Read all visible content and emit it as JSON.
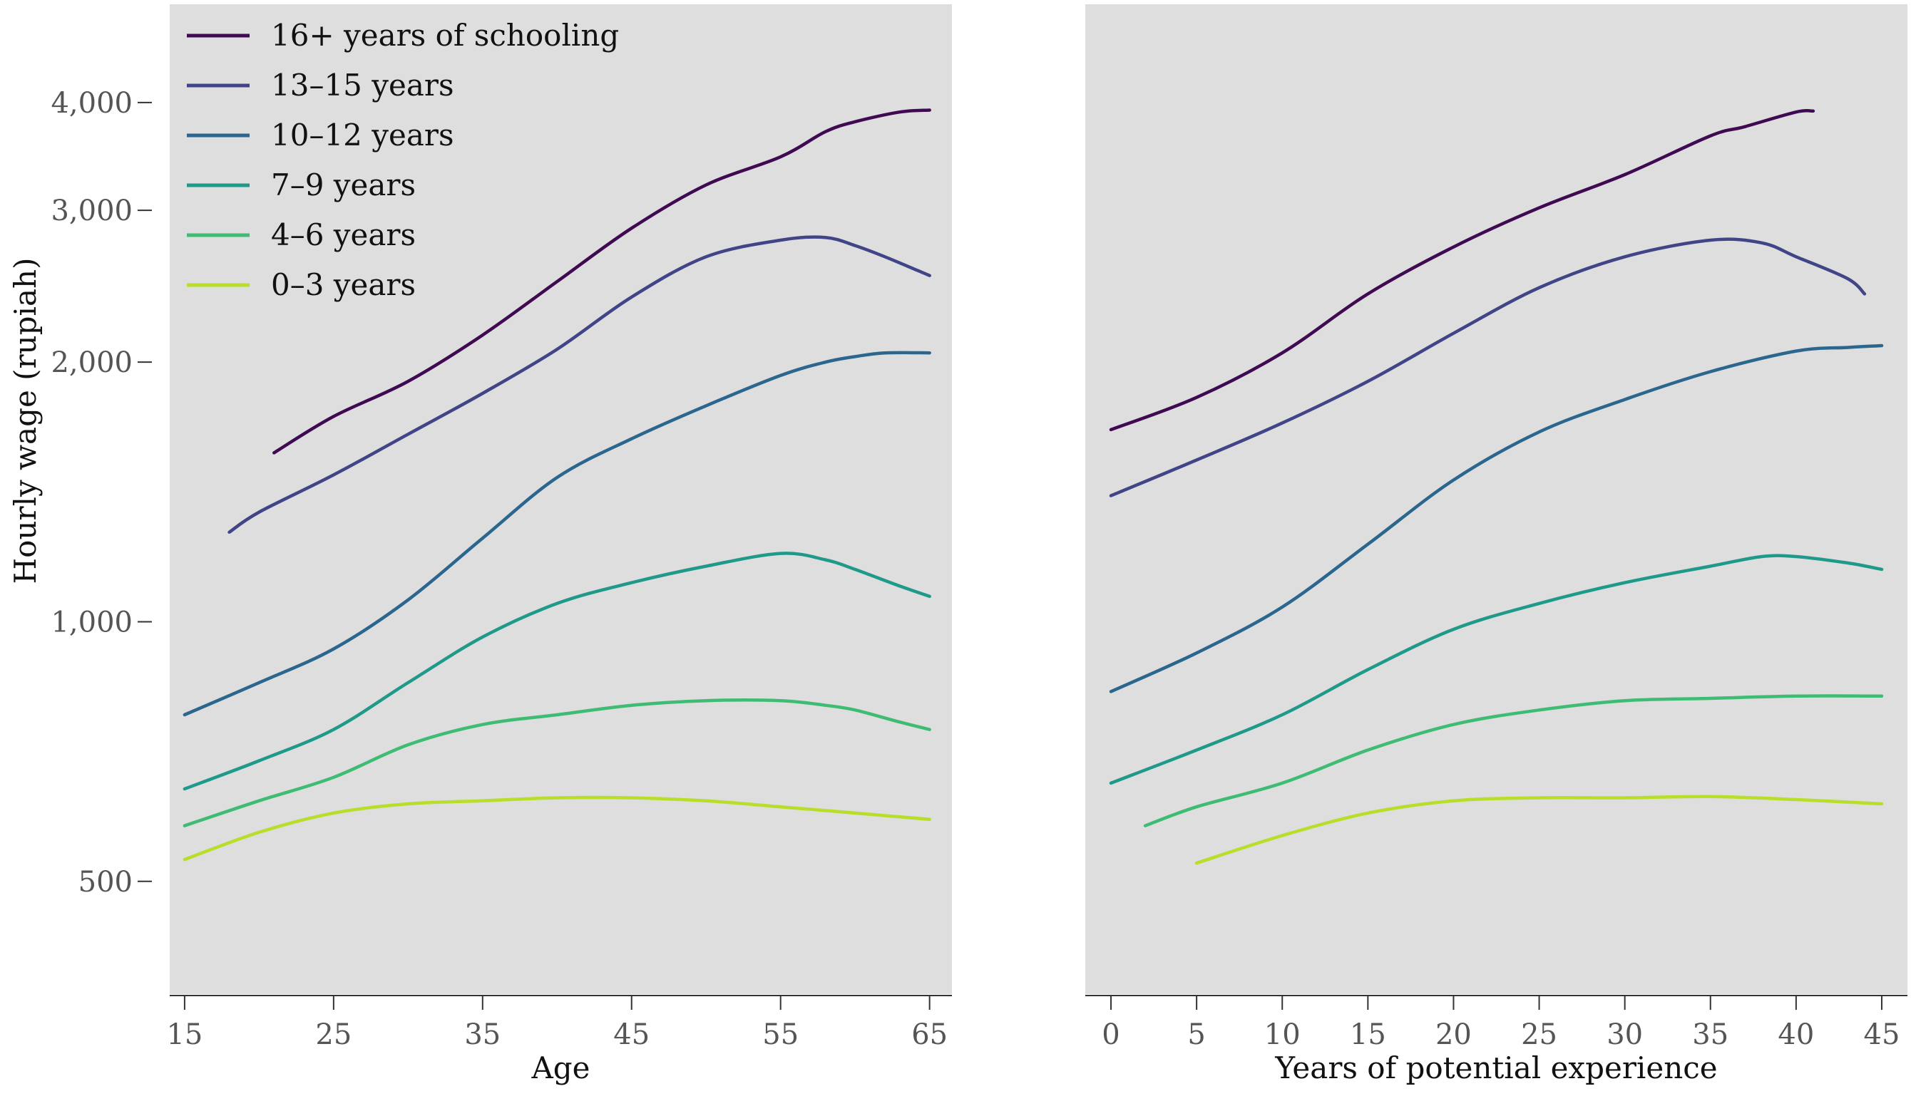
{
  "chart_data": [
    {
      "type": "line",
      "xlabel": "Age",
      "ylabel": "Hourly wage (rupiah)",
      "y_scale": "log",
      "xlim": [
        14,
        66.5
      ],
      "ylim": [
        370,
        5200
      ],
      "x_ticks": [
        15,
        25,
        35,
        45,
        55,
        65
      ],
      "x_tick_labels": [
        "15",
        "25",
        "35",
        "45",
        "55",
        "65"
      ],
      "y_ticks": [
        500,
        1000,
        2000,
        3000,
        4000
      ],
      "y_tick_labels": [
        "500",
        "1,000",
        "2,000",
        "3,000",
        "4,000"
      ],
      "background": "#dedede",
      "legend": {
        "placement": "top-left",
        "entries": [
          "16+ years of schooling",
          "13–15 years",
          "10–12 years",
          "7–9 years",
          "4–6 years",
          "0–3 years"
        ]
      },
      "series": [
        {
          "name": "16+ years of schooling",
          "color": "#3f0a52",
          "x": [
            21,
            25,
            30,
            35,
            40,
            45,
            50,
            55,
            58,
            60,
            63,
            65
          ],
          "y": [
            1570,
            1730,
            1900,
            2150,
            2480,
            2860,
            3210,
            3460,
            3700,
            3800,
            3900,
            3920
          ]
        },
        {
          "name": "13–15 years",
          "color": "#414487",
          "x": [
            18,
            20,
            25,
            30,
            35,
            40,
            45,
            50,
            55,
            58,
            60,
            62,
            65
          ],
          "y": [
            1270,
            1340,
            1480,
            1650,
            1840,
            2070,
            2380,
            2650,
            2770,
            2790,
            2730,
            2650,
            2520
          ]
        },
        {
          "name": "10–12 years",
          "color": "#2a668e",
          "x": [
            15,
            20,
            25,
            30,
            35,
            40,
            45,
            50,
            55,
            58,
            60,
            62,
            65
          ],
          "y": [
            780,
            850,
            930,
            1060,
            1250,
            1470,
            1630,
            1780,
            1930,
            2000,
            2030,
            2050,
            2050
          ]
        },
        {
          "name": "7–9 years",
          "color": "#1f9a8a",
          "x": [
            15,
            20,
            25,
            30,
            35,
            40,
            45,
            50,
            55,
            58,
            60,
            63,
            65
          ],
          "y": [
            640,
            690,
            750,
            850,
            960,
            1050,
            1110,
            1160,
            1200,
            1180,
            1150,
            1100,
            1070
          ]
        },
        {
          "name": "4–6 years",
          "color": "#3fbc73",
          "x": [
            15,
            20,
            25,
            30,
            35,
            40,
            45,
            50,
            55,
            58,
            60,
            63,
            65
          ],
          "y": [
            580,
            620,
            660,
            720,
            760,
            780,
            800,
            810,
            810,
            800,
            790,
            765,
            750
          ]
        },
        {
          "name": "0–3 years",
          "color": "#b8de29",
          "x": [
            15,
            20,
            25,
            30,
            35,
            40,
            45,
            50,
            55,
            60,
            65
          ],
          "y": [
            530,
            570,
            600,
            615,
            620,
            625,
            625,
            620,
            610,
            600,
            590
          ]
        }
      ]
    },
    {
      "type": "line",
      "xlabel": "Years of potential experience",
      "ylabel": "",
      "y_scale": "log",
      "xlim": [
        -1.5,
        46.5
      ],
      "ylim": [
        370,
        5200
      ],
      "x_ticks": [
        0,
        5,
        10,
        15,
        20,
        25,
        30,
        35,
        40,
        45
      ],
      "x_tick_labels": [
        "0",
        "5",
        "10",
        "15",
        "20",
        "25",
        "30",
        "35",
        "40",
        "45"
      ],
      "background": "#dedede",
      "series": [
        {
          "name": "16+ years of schooling",
          "color": "#3f0a52",
          "x": [
            0,
            5,
            10,
            15,
            20,
            25,
            30,
            35,
            37,
            40,
            41
          ],
          "y": [
            1670,
            1820,
            2050,
            2400,
            2720,
            3020,
            3300,
            3660,
            3750,
            3900,
            3910
          ]
        },
        {
          "name": "13–15 years",
          "color": "#414487",
          "x": [
            0,
            5,
            10,
            15,
            20,
            25,
            30,
            35,
            38,
            40,
            43,
            44
          ],
          "y": [
            1400,
            1540,
            1700,
            1900,
            2160,
            2440,
            2650,
            2770,
            2750,
            2650,
            2500,
            2400
          ]
        },
        {
          "name": "10–12 years",
          "color": "#2a668e",
          "x": [
            0,
            5,
            10,
            15,
            20,
            25,
            30,
            35,
            40,
            43,
            45
          ],
          "y": [
            830,
            920,
            1040,
            1230,
            1460,
            1660,
            1810,
            1950,
            2060,
            2080,
            2090
          ]
        },
        {
          "name": "7–9 years",
          "color": "#1f9a8a",
          "x": [
            0,
            5,
            10,
            15,
            20,
            25,
            30,
            35,
            38,
            40,
            43,
            45
          ],
          "y": [
            650,
            710,
            780,
            880,
            980,
            1050,
            1110,
            1160,
            1190,
            1190,
            1170,
            1150
          ]
        },
        {
          "name": "4–6 years",
          "color": "#3fbc73",
          "x": [
            2,
            5,
            10,
            15,
            20,
            25,
            30,
            35,
            40,
            45
          ],
          "y": [
            580,
            610,
            650,
            710,
            760,
            790,
            810,
            815,
            820,
            820
          ]
        },
        {
          "name": "0–3 years",
          "color": "#b8de29",
          "x": [
            5,
            10,
            15,
            20,
            25,
            30,
            35,
            40,
            45
          ],
          "y": [
            525,
            565,
            600,
            620,
            625,
            625,
            627,
            622,
            615
          ]
        }
      ]
    }
  ]
}
